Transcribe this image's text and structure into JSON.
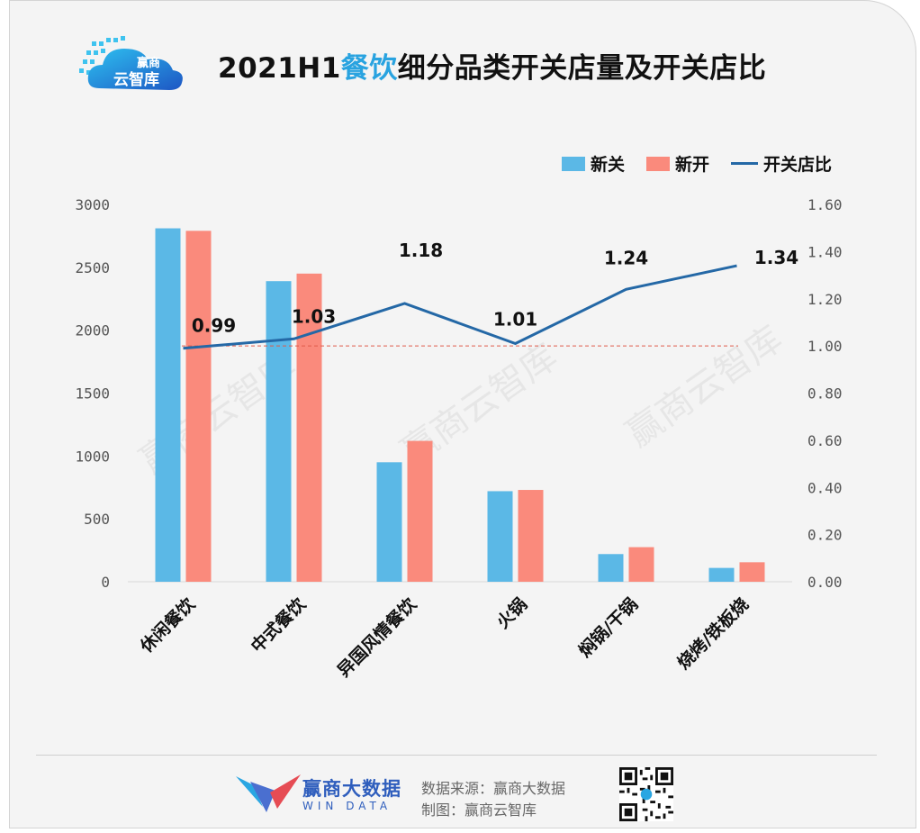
{
  "header": {
    "logo_text_top": "赢商",
    "logo_text_bottom": "云智库",
    "title_prefix": "2021H1",
    "title_highlight": "餐饮",
    "title_suffix": "细分品类开关店量及开关店比"
  },
  "colors": {
    "close": "#5bb8e6",
    "open": "#fa8a7c",
    "ratio": "#2468a6",
    "reference": "#e05a4a"
  },
  "legend": [
    {
      "label": "新关",
      "icon": "blue-swatch"
    },
    {
      "label": "新开",
      "icon": "salmon-swatch"
    },
    {
      "label": "开关店比",
      "icon": "line-swatch"
    }
  ],
  "chart_data": {
    "type": "bar",
    "categories": [
      "休闲餐饮",
      "中式餐饮",
      "异国风情餐饮",
      "火锅",
      "焖锅/干锅",
      "烧烤/铁板烧"
    ],
    "series": [
      {
        "name": "新关",
        "axis": "left",
        "values": [
          2810,
          2390,
          950,
          720,
          220,
          110
        ]
      },
      {
        "name": "新开",
        "axis": "left",
        "values": [
          2790,
          2450,
          1120,
          730,
          275,
          155
        ]
      },
      {
        "name": "开关店比",
        "axis": "right",
        "type": "line",
        "values": [
          0.99,
          1.03,
          1.18,
          1.01,
          1.24,
          1.34
        ]
      }
    ],
    "data_labels": [
      "0.99",
      "1.03",
      "1.18",
      "1.01",
      "1.24",
      "1.34"
    ],
    "ylim": [
      0,
      3000
    ],
    "y_ticks": [
      "0",
      "500",
      "1000",
      "1500",
      "2000",
      "2500",
      "3000"
    ],
    "y2lim": [
      0,
      1.6
    ],
    "y2_ticks": [
      "0.00",
      "0.20",
      "0.40",
      "0.60",
      "0.80",
      "1.00",
      "1.20",
      "1.40",
      "1.60"
    ],
    "reference_line": 1.0,
    "legend_position": "top-right",
    "grid": false
  },
  "watermark": "赢商云智库",
  "footer": {
    "brand_cn": "赢商大数据",
    "brand_en": "WIN DATA",
    "source": "数据来源：赢商大数据",
    "made_by": "制图：赢商云智库"
  }
}
